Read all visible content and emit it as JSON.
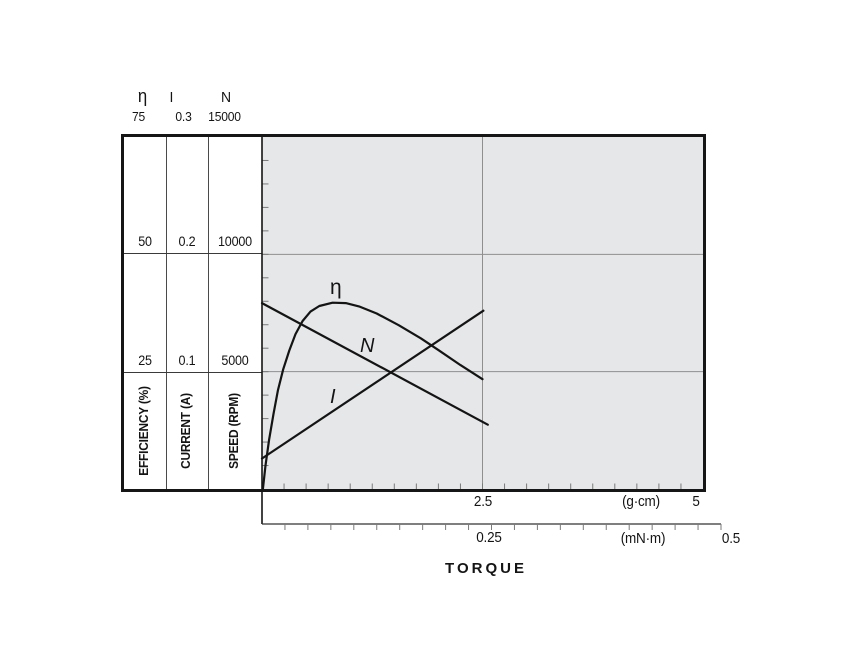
{
  "columns": [
    {
      "symbol": "η",
      "top_value": "75",
      "mid_value": "50",
      "low_value": "25",
      "axis_label": "EFFICIENCY (%)"
    },
    {
      "symbol": "I",
      "top_value": "0.3",
      "mid_value": "0.2",
      "low_value": "0.1",
      "axis_label": "CURRENT (A)"
    },
    {
      "symbol": "N",
      "top_value": "15000",
      "mid_value": "10000",
      "low_value": "5000",
      "axis_label": "SPEED (RPM)"
    }
  ],
  "bottom_axis": {
    "gcm_mid": "2.5",
    "gcm_unit": "(g·cm)",
    "gcm_max": "5",
    "mnm_mid": "0.25",
    "mnm_unit": "(mN·m)",
    "mnm_max": "0.5",
    "title": "TORQUE"
  },
  "curve_labels": {
    "efficiency": "η",
    "speed": "N",
    "current": "I"
  },
  "colors": {
    "plot_background": "#e6e7e9",
    "gridline": "#8f8f8f",
    "curve": "#141414",
    "frame": "#161616",
    "tick": "#7a7a7a"
  },
  "chart_data": {
    "type": "line",
    "title": "",
    "xlabel": "TORQUE",
    "x_axes": [
      {
        "unit": "g·cm",
        "range": [
          0,
          5
        ],
        "labeled_ticks": [
          2.5,
          5
        ],
        "minor_tick_step": 0.25
      },
      {
        "unit": "mN·m",
        "range": [
          0,
          0.5
        ],
        "labeled_ticks": [
          0.25,
          0.5
        ],
        "minor_tick_step": 0.025
      }
    ],
    "y_axes": [
      {
        "name": "EFFICIENCY (%)",
        "symbol": "η",
        "range": [
          0,
          75
        ],
        "labeled_ticks": [
          25,
          50,
          75
        ]
      },
      {
        "name": "CURRENT (A)",
        "symbol": "I",
        "range": [
          0,
          0.3
        ],
        "labeled_ticks": [
          0.1,
          0.2,
          0.3
        ]
      },
      {
        "name": "SPEED (RPM)",
        "symbol": "N",
        "range": [
          0,
          15000
        ],
        "labeled_ticks": [
          5000,
          10000,
          15000
        ],
        "minor_tick_step": 1000
      }
    ],
    "gridlines": {
      "horizontal_value_fractions": [
        0.3333,
        0.6667
      ],
      "vertical_at_torque_gcm": [
        2.5
      ]
    },
    "legend_position": "inline-curve-labels",
    "series": [
      {
        "name": "η",
        "axis": "efficiency",
        "x_gcm": [
          0.01,
          0.04,
          0.08,
          0.13,
          0.18,
          0.24,
          0.31,
          0.38,
          0.46,
          0.55,
          0.65,
          0.8,
          0.95,
          1.1,
          1.3,
          1.55,
          1.8,
          2.0,
          2.25,
          2.5
        ],
        "values": [
          0,
          5,
          10.5,
          16,
          21,
          25.5,
          29.5,
          33,
          35.8,
          37.8,
          39.0,
          39.7,
          39.6,
          38.9,
          37.4,
          34.9,
          32.1,
          29.6,
          26.4,
          23.4
        ]
      },
      {
        "name": "N",
        "axis": "speed",
        "x_gcm": [
          0,
          2.56
        ],
        "values": [
          7920,
          2740
        ]
      },
      {
        "name": "I",
        "axis": "current",
        "x_gcm": [
          0,
          2.51
        ],
        "values": [
          0.026,
          0.152
        ]
      }
    ]
  }
}
